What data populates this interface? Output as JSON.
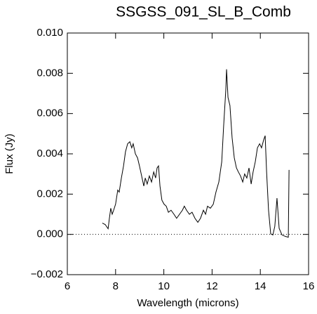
{
  "chart_data": {
    "type": "line",
    "title": "SSGSS_091_SL_B_Comb",
    "xlabel": "Wavelength (microns)",
    "ylabel": "Flux (Jy)",
    "xlim": [
      6,
      16
    ],
    "xticks": [
      6,
      8,
      10,
      12,
      14,
      16
    ],
    "ylim": [
      -0.002,
      0.01
    ],
    "yticks": [
      {
        "value": -0.002,
        "label": "−0.002"
      },
      {
        "value": 0,
        "label": "0.000"
      },
      {
        "value": 0.002,
        "label": "0.002"
      },
      {
        "value": 0.004,
        "label": "0.004"
      },
      {
        "value": 0.006,
        "label": "0.006"
      },
      {
        "value": 0.008,
        "label": "0.008"
      },
      {
        "value": 0.01,
        "label": "0.010"
      }
    ],
    "zero_line": true,
    "color": "#000000",
    "x": [
      7.45,
      7.57,
      7.69,
      7.74,
      7.8,
      7.86,
      7.92,
      8.0,
      8.09,
      8.15,
      8.24,
      8.33,
      8.41,
      8.5,
      8.59,
      8.67,
      8.73,
      8.82,
      8.91,
      8.99,
      9.08,
      9.17,
      9.23,
      9.31,
      9.4,
      9.49,
      9.58,
      9.66,
      9.72,
      9.78,
      9.84,
      9.92,
      10.01,
      10.1,
      10.19,
      10.3,
      10.42,
      10.53,
      10.65,
      10.77,
      10.85,
      10.94,
      11.06,
      11.17,
      11.29,
      11.41,
      11.52,
      11.64,
      11.73,
      11.81,
      11.93,
      12.05,
      12.16,
      12.28,
      12.4,
      12.48,
      12.57,
      12.6,
      12.66,
      12.74,
      12.83,
      12.92,
      13.01,
      13.09,
      13.18,
      13.27,
      13.35,
      13.44,
      13.53,
      13.62,
      13.7,
      13.79,
      13.88,
      13.97,
      14.05,
      14.14,
      14.2,
      14.26,
      14.34,
      14.43,
      14.52,
      14.6,
      14.69,
      14.78,
      14.9,
      15.04,
      15.16,
      15.19
    ],
    "values": [
      0.00056,
      0.00049,
      0.00028,
      0.00077,
      0.0013,
      0.001,
      0.0012,
      0.0015,
      0.0022,
      0.0021,
      0.0028,
      0.0034,
      0.0041,
      0.0045,
      0.0046,
      0.0043,
      0.0045,
      0.004,
      0.0038,
      0.0034,
      0.0029,
      0.0024,
      0.0028,
      0.0025,
      0.0029,
      0.0026,
      0.0031,
      0.0028,
      0.0033,
      0.0034,
      0.0024,
      0.0017,
      0.0015,
      0.0014,
      0.0011,
      0.0012,
      0.001,
      0.0008,
      0.001,
      0.0012,
      0.0014,
      0.0012,
      0.001,
      0.0011,
      0.0008,
      0.0006,
      0.0008,
      0.0012,
      0.001,
      0.0014,
      0.0013,
      0.0015,
      0.0021,
      0.0026,
      0.0036,
      0.0054,
      0.0072,
      0.0082,
      0.0068,
      0.0064,
      0.0048,
      0.0038,
      0.0033,
      0.0031,
      0.0029,
      0.0026,
      0.003,
      0.0028,
      0.0033,
      0.0025,
      0.0031,
      0.0036,
      0.0043,
      0.0045,
      0.0043,
      0.0047,
      0.0049,
      0.0031,
      0.0012,
      3e-05,
      -3e-05,
      0.0004,
      0.0018,
      0.0003,
      -3e-05,
      -0.0001,
      -0.00014,
      0.0032
    ]
  }
}
